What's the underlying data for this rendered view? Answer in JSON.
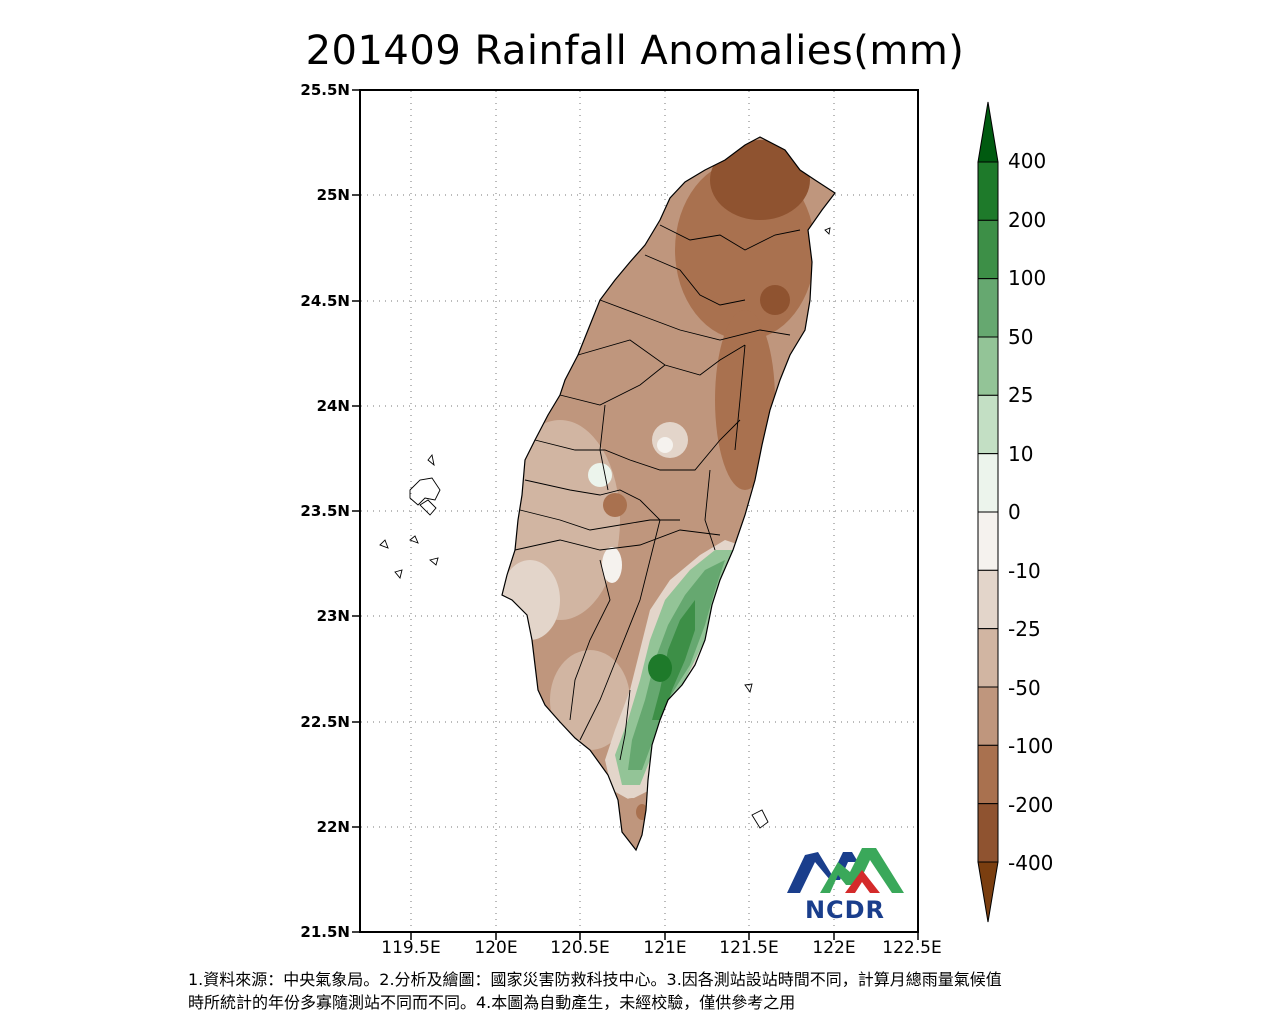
{
  "title": "201409 Rainfall Anomalies(mm)",
  "map": {
    "lat_ticks": [
      "25.5N",
      "25N",
      "24.5N",
      "24N",
      "23.5N",
      "23N",
      "22.5N",
      "22N",
      "21.5N"
    ],
    "lon_ticks": [
      "119.5E",
      "120E",
      "120.5E",
      "121E",
      "121.5E",
      "122E",
      "122.5E"
    ],
    "lat_range": [
      21.5,
      25.5
    ],
    "lon_range": [
      119.2,
      122.5
    ],
    "grid": "dotted"
  },
  "colorbar": {
    "labels": [
      "400",
      "200",
      "100",
      "50",
      "25",
      "10",
      "0",
      "-10",
      "-25",
      "-50",
      "-100",
      "-200",
      "-400"
    ],
    "colors_top_to_bottom": [
      "#005a10",
      "#1e7a2a",
      "#3d8f47",
      "#66a870",
      "#93c497",
      "#c3dfc4",
      "#ecf4ec",
      "#f5f2ee",
      "#e3d5ca",
      "#d1b5a2",
      "#bf967d",
      "#a9714f",
      "#8f5330",
      "#7a3e10"
    ],
    "extend": "both"
  },
  "logo": {
    "text": "NCDR",
    "colors": [
      "#1a3e8c",
      "#d42a2a",
      "#3aa85a"
    ]
  },
  "footnote": "1.資料來源：中央氣象局。2.分析及繪圖：國家災害防救科技中心。3.因各測站設站時間不同，計算月總雨量氣候值\n時所統計的年份多寡隨測站不同而不同。4.本圖為自動產生，未經校驗，僅供參考之用"
}
